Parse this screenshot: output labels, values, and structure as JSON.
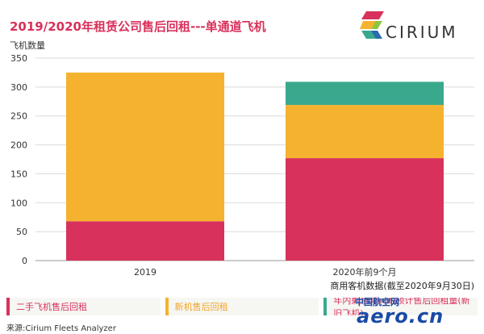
{
  "header": {
    "title": "2019/2020年租赁公司售后回租---单通道飞机",
    "ylabel": "飞机数量",
    "brand": "CIRIUM"
  },
  "note": "商用客机数据(截至2020年9月30日)",
  "source": "来源:Cirium Fleets Analyzer",
  "watermark": {
    "top": "中国航空网",
    "main": "aero.cn"
  },
  "colors": {
    "used": "#d8315b",
    "new": "#f5b22e",
    "remaining": "#3aa88c",
    "grid": "#d9d9d9"
  },
  "legend": [
    {
      "label": "二手飞机售后回租",
      "color": "#d8315b"
    },
    {
      "label": "新机售后回租",
      "color": "#f5b22e"
    },
    {
      "label": "年内剩余时间的预计售后回租量(新旧飞机)",
      "color": "#3aa88c"
    }
  ],
  "chart_data": {
    "type": "bar",
    "stacked": true,
    "categories": [
      "2019",
      "2020年前9个月"
    ],
    "series": [
      {
        "name": "二手飞机售后回租",
        "values": [
          68,
          177
        ]
      },
      {
        "name": "新机售后回租",
        "values": [
          257,
          92
        ]
      },
      {
        "name": "年内剩余时间的预计售后回租量(新旧飞机)",
        "values": [
          0,
          40
        ]
      }
    ],
    "ylim": [
      0,
      350
    ],
    "yticks": [
      "0",
      "50",
      "100",
      "150",
      "200",
      "250",
      "300",
      "350"
    ],
    "grid": true
  }
}
